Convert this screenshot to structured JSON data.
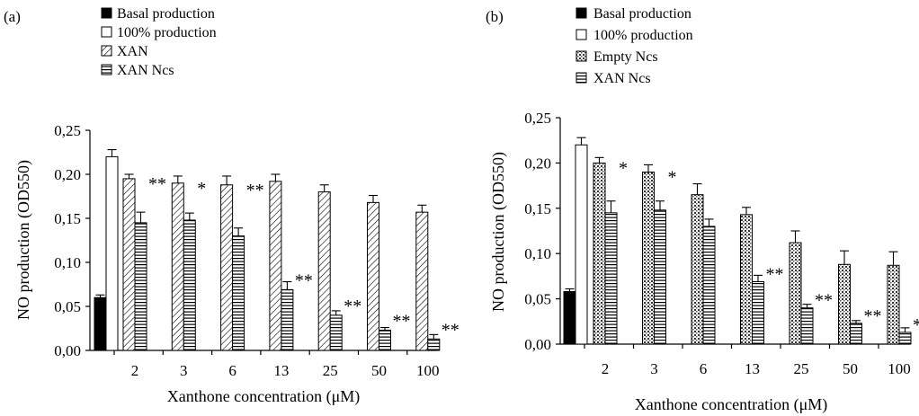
{
  "legend_labels": {
    "basal": "Basal production",
    "full": "100% production",
    "xan": "XAN",
    "empty": "Empty Ncs",
    "xan_ncs": "XAN Ncs"
  },
  "colors": {
    "basal": "#000000",
    "full": "#ffffff",
    "xan": "hatch-diagonal",
    "empty": "dotted",
    "xan_ncs": "hatch-horizontal"
  },
  "chart_data": [
    {
      "panel_label": "(a)",
      "type": "bar",
      "xlabel": "Xanthone concentration (μM)",
      "ylabel": "NO production (OD550)",
      "ylim": [
        0,
        0.25
      ],
      "yticks": [
        "0,00",
        "0,05",
        "0,10",
        "0,15",
        "0,20",
        "0,25"
      ],
      "categories": [
        "2",
        "3",
        "6",
        "13",
        "25",
        "50",
        "100"
      ],
      "controls": [
        {
          "name": "Basal production",
          "value": 0.06,
          "error": 0.003
        },
        {
          "name": "100% production",
          "value": 0.22,
          "error": 0.008
        }
      ],
      "series": [
        {
          "name": "XAN",
          "values": [
            0.195,
            0.19,
            0.188,
            0.192,
            0.18,
            0.168,
            0.157
          ],
          "errors": [
            0.005,
            0.008,
            0.01,
            0.008,
            0.008,
            0.008,
            0.008
          ]
        },
        {
          "name": "XAN Ncs",
          "values": [
            0.145,
            0.148,
            0.13,
            0.069,
            0.04,
            0.023,
            0.013
          ],
          "errors": [
            0.012,
            0.008,
            0.009,
            0.009,
            0.005,
            0.003,
            0.005
          ]
        }
      ],
      "significance": [
        "**",
        "*",
        "**",
        "**",
        "**",
        "**",
        "**"
      ]
    },
    {
      "panel_label": "(b)",
      "type": "bar",
      "xlabel": "Xanthone concentration (μM)",
      "ylabel": "NO production (OD550)",
      "ylim": [
        0,
        0.25
      ],
      "yticks": [
        "0,00",
        "0,05",
        "0,10",
        "0,15",
        "0,20",
        "0,25"
      ],
      "categories": [
        "2",
        "3",
        "6",
        "13",
        "25",
        "50",
        "100"
      ],
      "controls": [
        {
          "name": "Basal production",
          "value": 0.058,
          "error": 0.003
        },
        {
          "name": "100% production",
          "value": 0.22,
          "error": 0.008
        }
      ],
      "series": [
        {
          "name": "Empty Ncs",
          "values": [
            0.2,
            0.19,
            0.165,
            0.143,
            0.112,
            0.088,
            0.087
          ],
          "errors": [
            0.006,
            0.008,
            0.012,
            0.008,
            0.013,
            0.015,
            0.015
          ]
        },
        {
          "name": "XAN Ncs",
          "values": [
            0.145,
            0.148,
            0.13,
            0.069,
            0.04,
            0.023,
            0.013
          ],
          "errors": [
            0.013,
            0.01,
            0.008,
            0.007,
            0.004,
            0.003,
            0.005
          ]
        }
      ],
      "significance": [
        "*",
        "*",
        "",
        "**",
        "**",
        "**",
        "**"
      ]
    }
  ]
}
